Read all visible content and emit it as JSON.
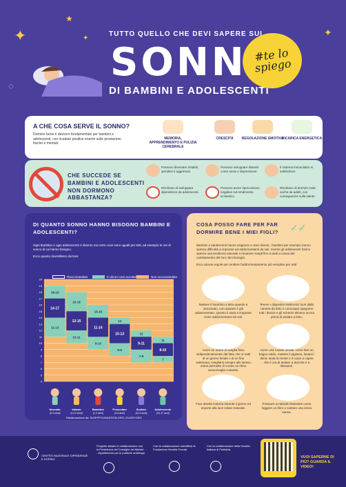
{
  "header": {
    "pre": "TUTTO QUELLO CHE DEVI SAPERE SUL",
    "title": "SONNO",
    "subtitle": "DI BAMBINI E ADOLESCENTI",
    "badge": "#te lo spiego"
  },
  "functions": {
    "title": "A CHE COSA SERVE IL SONNO?",
    "text": "Dormire bene è davvero fondamentale per bambini e adolescenti, con ricadute positive enormi sulle prestazioni fisiche e mentali.",
    "items": [
      "MEMORIA, APPRENDIMENTO E PULIZIA CEREBRALE",
      "CRESCITA",
      "REGOLAZIONE EMOTIVA",
      "RICARICA ENERGETICA"
    ]
  },
  "consequences": {
    "title": "CHE SUCCEDE SE BAMBINI E ADOLESCENTI NON DORMONO ABBASTANZA?",
    "items": [
      "Possono diventare irritabili, iperattivi e aggressivi.",
      "Possono sviluppare disturbi come ansia e depressione.",
      "Il sistema immunitario si indebolisce.",
      "Rischiano di sviluppare dipendenze da adolescenti.",
      "Possono avere ripercussioni negative sul rendimento scolastico.",
      "Rischiano di dormire male anche da adulti, con conseguenze sulla salute."
    ]
  },
  "hours": {
    "title": "DI QUANTO SONNO HANNO BISOGNO BAMBINI E ADOLESCENTI?",
    "intro": "Ogni bambino e ogni adolescente è diverso ma certo cose sono uguali per tutti, ad esempio le ore di sonno di cui hanno bisogno.",
    "sub": "Ecco quanto dovrebbero dormire",
    "legend": [
      "Raccomandato",
      "In alcuni casi accettabile",
      "Non raccomandato"
    ],
    "source": "Rielaborazione da: SLEEPFOUNDATION.ORG | SLEEP.ORG"
  },
  "chart_data": {
    "type": "bar",
    "ylim": [
      0,
      20
    ],
    "yticks": [
      4,
      5,
      6,
      7,
      8,
      9,
      10,
      11,
      12,
      13,
      14,
      15,
      16,
      17,
      18,
      19,
      20
    ],
    "categories": [
      "Neonato",
      "Infante",
      "Bambino",
      "Prescolare",
      "Scolare",
      "Adolescente"
    ],
    "category_ages": [
      "(0-3 mesi)",
      "(4-11 mesi)",
      "(1-2 anni)",
      "(3-5 anni)",
      "(6-13 anni)",
      "(14-17 anni)"
    ],
    "recommended": [
      [
        14,
        17
      ],
      [
        12,
        15
      ],
      [
        11,
        14
      ],
      [
        10,
        13
      ],
      [
        9,
        11
      ],
      [
        8,
        10
      ]
    ],
    "acceptable": [
      [
        11,
        19
      ],
      [
        10,
        18
      ],
      [
        9,
        16
      ],
      [
        8,
        14
      ],
      [
        7,
        12
      ],
      [
        7,
        11
      ]
    ],
    "labels_rec": [
      "14-17",
      "12-15",
      "11-14",
      "10-13",
      "9-11",
      "8-10"
    ],
    "labels_acc_top": [
      "18-19",
      "16-18",
      "15-16",
      "14",
      "12",
      "11"
    ],
    "labels_acc_bottom": [
      "11-13",
      "10-11",
      "9-10",
      "8-9",
      "7-8",
      "7"
    ],
    "colors": {
      "recommended": "#3a3290",
      "acceptable": "#8ad0b8",
      "not_recommended": "#f6b66d"
    }
  },
  "tips": {
    "title": "COSA POSSO FARE PER FAR DORMIRE BENE I MIEI FIGLI?",
    "intro": "Bambini e adolescenti hanno esigenze e orari diversi, i bambini per esempio hanno spesso difficoltà a imparare ad addormentarsi da soli, mentre gli adolescenti hanno spesso una tendenza naturale a rimanere svegli fino a tardi a causa del cambiamento dei loro ritmi biologici.",
    "lead": "Ecco alcune regole per rendere l'addormentamento più semplice per tutti:",
    "items": [
      "Mettere il bambino a letto quando è assonnato, non quando è già addormentato. Questo li aiuta a imparare come addormentarsi da soli.",
      "Tenere i dispositivi elettronici fuori dalla camera da letto e comunque spegnere tutti i device e gli schermi almeno un'ora prima di andare a letto.",
      "Avere un orario di sveglia fisso indipendentemente dal fatto che si tratti di un giorno feriale o di un fine settimana, svegliarsi sempre allo stesso orario permette di creare un ritmo sonno/veglia costante.",
      "Avere una routine serale, come fare un bagno caldo, mettere il pigiama, lavarsi i denti, aiuta la mente e il corpo a capire che è ora di andare a dormire e a rilassarsi.",
      "Fare attività motoria durante il giorno ed esporsi alla luce solare naturale.",
      "Praticare un'attività rilassante come leggere un libro o cantare una ninna nanna."
    ]
  },
  "footer": {
    "org1": "CENTRO NAZIONALE DIPENDENZE E DOPING",
    "org2": "Progetto attuato in collaborazione con la Presidenza del Consiglio dei Ministri - Dipartimento per le politiche antidroga",
    "org3": "Con la collaborazione scientifica di Fondazione Novella Fronda",
    "org4": "Con la collaborazione della Società Italiana di Pediatria",
    "qr_text": "VUOI SAPERNE DI PIÙ? GUARDA IL VIDEO!"
  }
}
